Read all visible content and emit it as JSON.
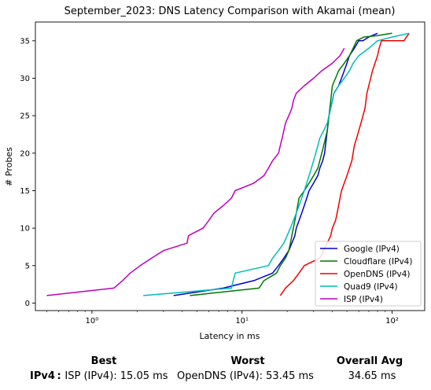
{
  "chart_data": {
    "type": "line",
    "title": "September_2023: DNS Latency Comparison with Akamai (mean)",
    "xlabel": "Latency in ms",
    "ylabel": "# Probes",
    "xscale": "log",
    "xlim": [
      0.42,
      165
    ],
    "ylim": [
      -1,
      37.5
    ],
    "xticks": [
      1,
      10,
      100
    ],
    "xtick_labels": [
      "10⁰",
      "10¹",
      "10²"
    ],
    "yticks": [
      0,
      5,
      10,
      15,
      20,
      25,
      30,
      35
    ],
    "legend_position": "lower-right",
    "series": [
      {
        "name": "Google (IPv4)",
        "color": "#0000cc",
        "x": [
          3.5,
          7.5,
          12,
          16,
          17.5,
          19,
          20.5,
          21.5,
          22.5,
          23,
          24,
          25,
          26,
          27,
          28,
          30,
          32,
          33,
          34.5,
          35.5,
          36,
          36.5,
          37,
          37.5,
          38,
          39,
          40,
          41,
          44,
          46,
          48,
          50,
          52,
          56,
          60,
          64,
          70,
          80
        ],
        "y": [
          1,
          2,
          3,
          4,
          5,
          6,
          7,
          8,
          9,
          10,
          11,
          12,
          13,
          14,
          15,
          16,
          17,
          18,
          19,
          20,
          21,
          22,
          23,
          24,
          25,
          26,
          27,
          28,
          29,
          30,
          31,
          32,
          33,
          34,
          35,
          35,
          35.5,
          36
        ]
      },
      {
        "name": "Cloudflare (IPv4)",
        "color": "#007700",
        "x": [
          4.5,
          13,
          14,
          17,
          18,
          19.5,
          20.5,
          21,
          21.5,
          22,
          22.5,
          23,
          23.5,
          24,
          26,
          28,
          30,
          32,
          33,
          34,
          35,
          36,
          37,
          37.5,
          38,
          38.5,
          39,
          39.5,
          40,
          42,
          44,
          48,
          52,
          55,
          58,
          65,
          80,
          100
        ],
        "y": [
          1,
          2,
          3,
          4,
          5,
          6,
          7,
          8,
          9,
          10,
          11,
          12,
          13,
          14,
          15,
          16,
          17,
          18,
          19,
          20,
          21,
          22,
          23,
          24,
          25,
          26,
          27,
          28,
          29,
          30,
          31,
          32,
          33,
          34,
          35,
          35.5,
          35.7,
          36
        ]
      },
      {
        "name": "OpenDNS (IPv4)",
        "color": "#ee0000",
        "x": [
          18,
          19.5,
          22,
          24,
          26,
          33,
          35,
          37,
          39,
          40,
          42,
          43,
          44,
          45,
          46,
          48,
          50,
          52,
          54,
          55,
          56,
          58,
          60,
          62,
          64,
          66,
          67,
          68,
          70,
          72,
          74,
          77,
          80,
          82,
          85,
          120,
          130
        ],
        "y": [
          1,
          2,
          3,
          4,
          5,
          6,
          7,
          8,
          9,
          10,
          11,
          12,
          13,
          14,
          15,
          16,
          17,
          18,
          19,
          20,
          21,
          22,
          23,
          24,
          25,
          26,
          27,
          28,
          29,
          30,
          31,
          32,
          33,
          34,
          35,
          35,
          36
        ]
      },
      {
        "name": "Quad9 (IPv4)",
        "color": "#00bbbb",
        "x": [
          2.2,
          8.5,
          9,
          15,
          16,
          17.5,
          19,
          20,
          21,
          22,
          23,
          24,
          25,
          26,
          27,
          28,
          29,
          30,
          31,
          32,
          33,
          35,
          37,
          38,
          39,
          40,
          41,
          44,
          48,
          52,
          55,
          60,
          70,
          80,
          100,
          130
        ],
        "y": [
          1,
          2,
          4,
          5,
          6,
          7,
          8,
          9,
          10,
          11,
          12,
          13,
          14,
          15,
          16,
          17,
          18,
          19,
          20,
          21,
          22,
          23,
          24,
          25,
          26,
          27,
          28,
          29,
          30,
          31,
          32,
          33,
          34,
          35,
          35.5,
          36
        ]
      },
      {
        "name": "ISP (IPv4)",
        "color": "#bb00bb",
        "x": [
          0.5,
          1.4,
          1.6,
          1.8,
          2.1,
          2.5,
          3.0,
          4.3,
          4.4,
          5.5,
          6.0,
          6.5,
          7.5,
          8.5,
          9.0,
          12.0,
          14.0,
          15.0,
          16.0,
          17.5,
          18.0,
          18.5,
          19.0,
          19.5,
          20.5,
          21.5,
          22.0,
          23.0,
          26.0,
          30.0,
          34.0,
          40.0,
          45.0,
          48.0
        ],
        "y": [
          1,
          2,
          3,
          4,
          5,
          6,
          7,
          8,
          9,
          10,
          11,
          12,
          13,
          14,
          15,
          16,
          17,
          18,
          19,
          20,
          21,
          22,
          23,
          24,
          25,
          26,
          27,
          28,
          29,
          30,
          31,
          32,
          33,
          34
        ]
      }
    ]
  },
  "summary": {
    "headers": {
      "best": "Best",
      "worst": "Worst",
      "avg": "Overall Avg"
    },
    "row_label": "IPv4 :",
    "best": "ISP (IPv4): 15.05 ms",
    "worst": "OpenDNS (IPv4): 53.45 ms",
    "avg": "34.65 ms"
  }
}
